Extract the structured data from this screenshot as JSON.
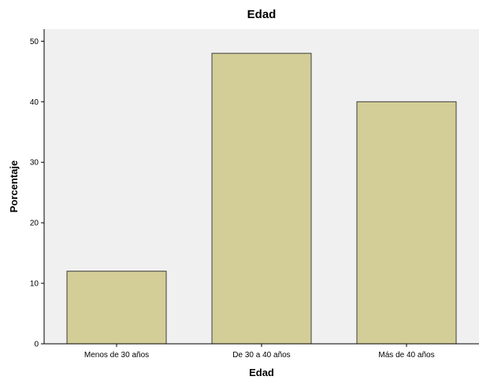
{
  "chart_data": {
    "type": "bar",
    "title": "Edad",
    "xlabel": "Edad",
    "ylabel": "Porcentaje",
    "categories": [
      "Menos de 30 años",
      "De 30 a 40 años",
      "Más de 40 años"
    ],
    "values": [
      12,
      48,
      40
    ],
    "ylim": [
      0,
      52
    ],
    "yticks": [
      0,
      10,
      20,
      30,
      40,
      50
    ],
    "ytick_labels": [
      "0",
      "10",
      "20",
      "30",
      "40",
      "50"
    ],
    "grid": false,
    "legend": "none",
    "colors": {
      "plot_background": "#f0f0f0",
      "bar_fill": "#d3ce97",
      "bar_stroke": "#3c3c3c",
      "axis": "#000000"
    }
  }
}
